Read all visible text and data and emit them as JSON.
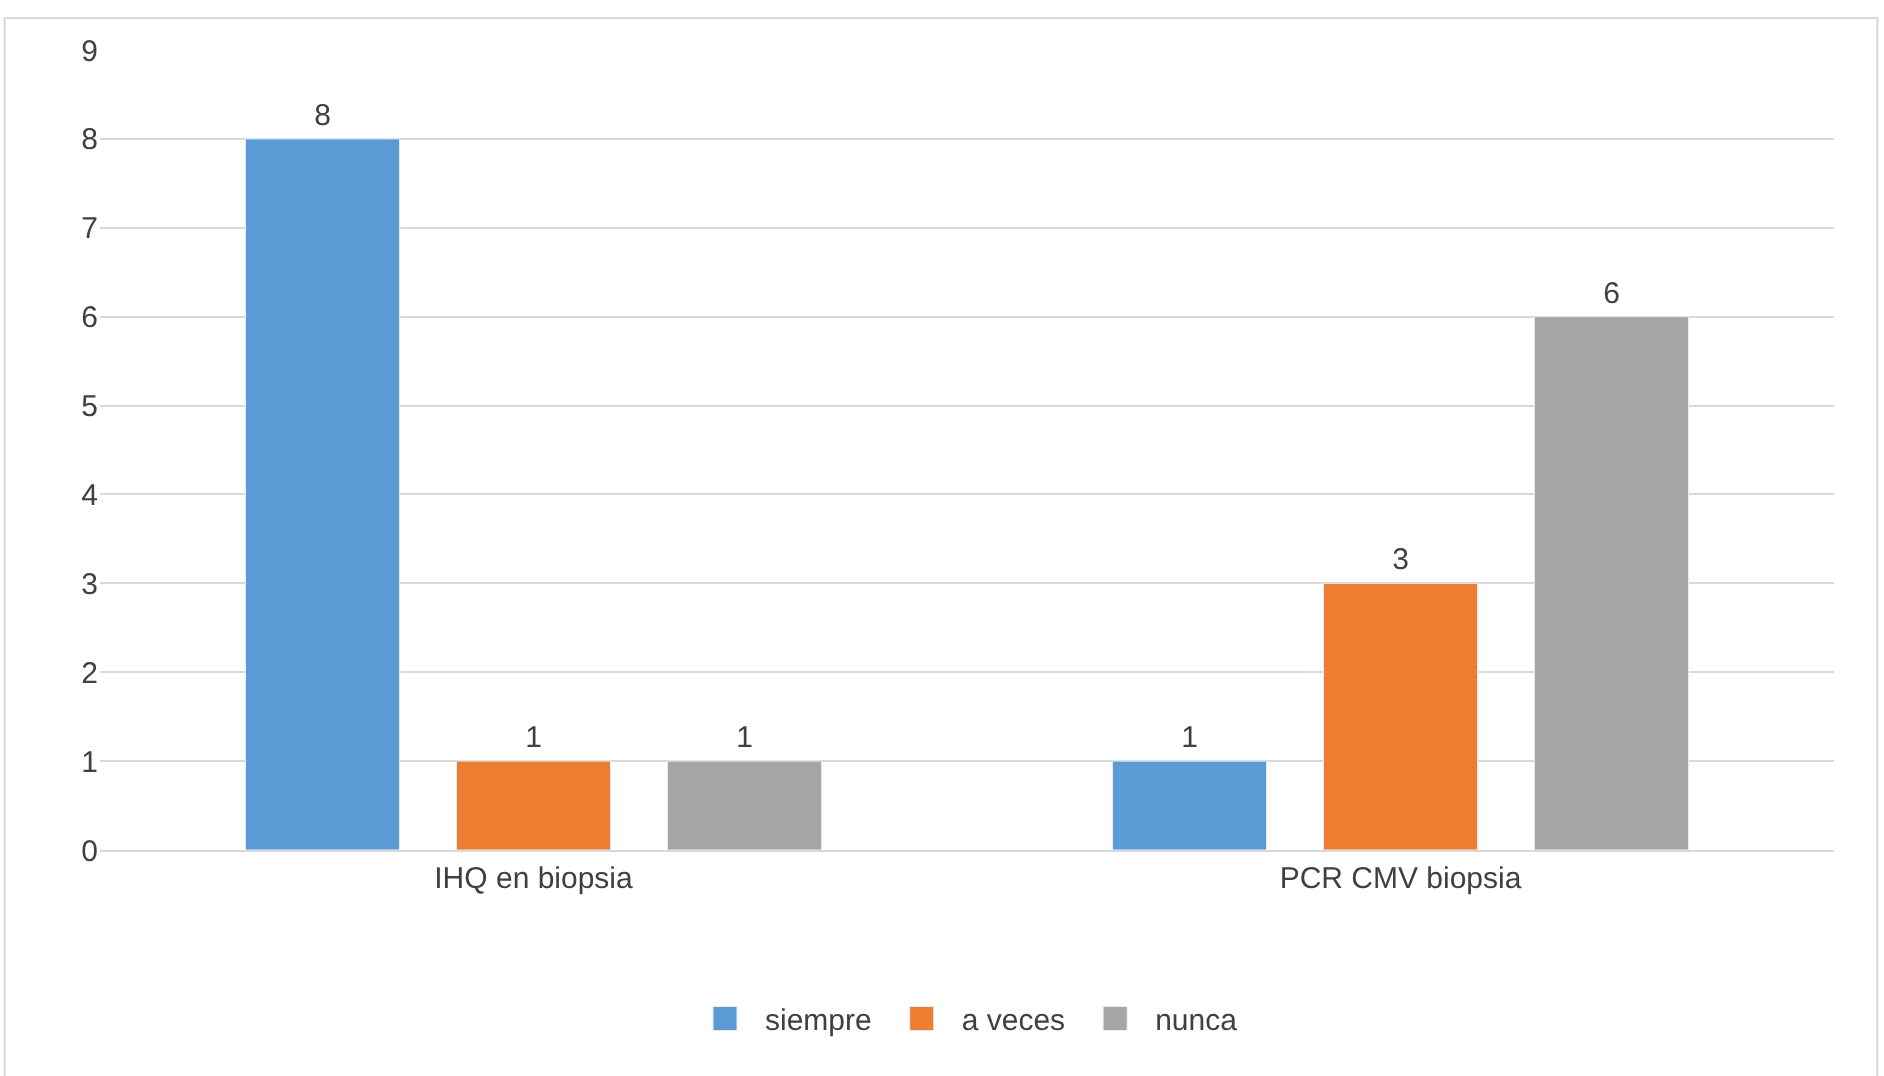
{
  "chart_data": {
    "type": "bar",
    "categories": [
      "IHQ en biopsia",
      "PCR CMV biopsia"
    ],
    "series": [
      {
        "name": "siempre",
        "color": "#5b9bd5",
        "values": [
          8,
          1
        ]
      },
      {
        "name": "a veces",
        "color": "#ed7d31",
        "values": [
          1,
          3
        ]
      },
      {
        "name": "nunca",
        "color": "#a5a5a5",
        "values": [
          1,
          6
        ]
      }
    ],
    "ylim": [
      0,
      9
    ],
    "yticks": [
      0,
      1,
      2,
      3,
      4,
      5,
      6,
      7,
      8,
      9
    ],
    "grid": "y",
    "legend": "bottom",
    "data_labels": true
  }
}
